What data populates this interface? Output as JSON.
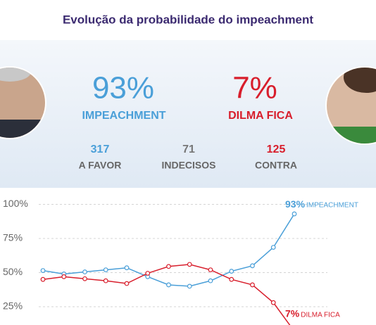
{
  "title": "Evolução da probabilidade do impeachment",
  "header": {
    "left": {
      "value": "93%",
      "label": "IMPEACHMENT"
    },
    "right": {
      "value": "7%",
      "label": "DILMA FICA"
    },
    "counts": [
      {
        "value": "317",
        "label": "A FAVOR"
      },
      {
        "value": "71",
        "label": "INDECISOS"
      },
      {
        "value": "125",
        "label": "CONTRA"
      }
    ]
  },
  "chart_data": {
    "type": "line",
    "categories": [
      null,
      null,
      null,
      null,
      null,
      null,
      null,
      null,
      null,
      null,
      null,
      null,
      null
    ],
    "series": [
      {
        "name": "IMPEACHMENT",
        "color": "#4a9fd8",
        "values": [
          51.5,
          49,
          50.5,
          52,
          53.5,
          47,
          41,
          40,
          44,
          51,
          55,
          68.5,
          93
        ],
        "value_labels": [
          null,
          null,
          null,
          null,
          null,
          null,
          null,
          null,
          null,
          null,
          null,
          null,
          "93%"
        ]
      },
      {
        "name": "DILMA FICA",
        "color": "#d81e2c",
        "values": [
          45,
          47,
          45.5,
          44,
          42,
          49.5,
          54.5,
          56,
          52,
          45,
          41,
          28,
          7
        ],
        "value_labels": [
          null,
          null,
          null,
          null,
          null,
          null,
          null,
          null,
          null,
          null,
          null,
          null,
          "7%"
        ]
      }
    ],
    "ylim": [
      0,
      100
    ],
    "yticks": [
      {
        "value": 25,
        "label": "25%"
      },
      {
        "value": 50,
        "label": "50%"
      },
      {
        "value": 75,
        "label": "75%"
      },
      {
        "value": 100,
        "label": "100%"
      }
    ],
    "grid": true
  }
}
